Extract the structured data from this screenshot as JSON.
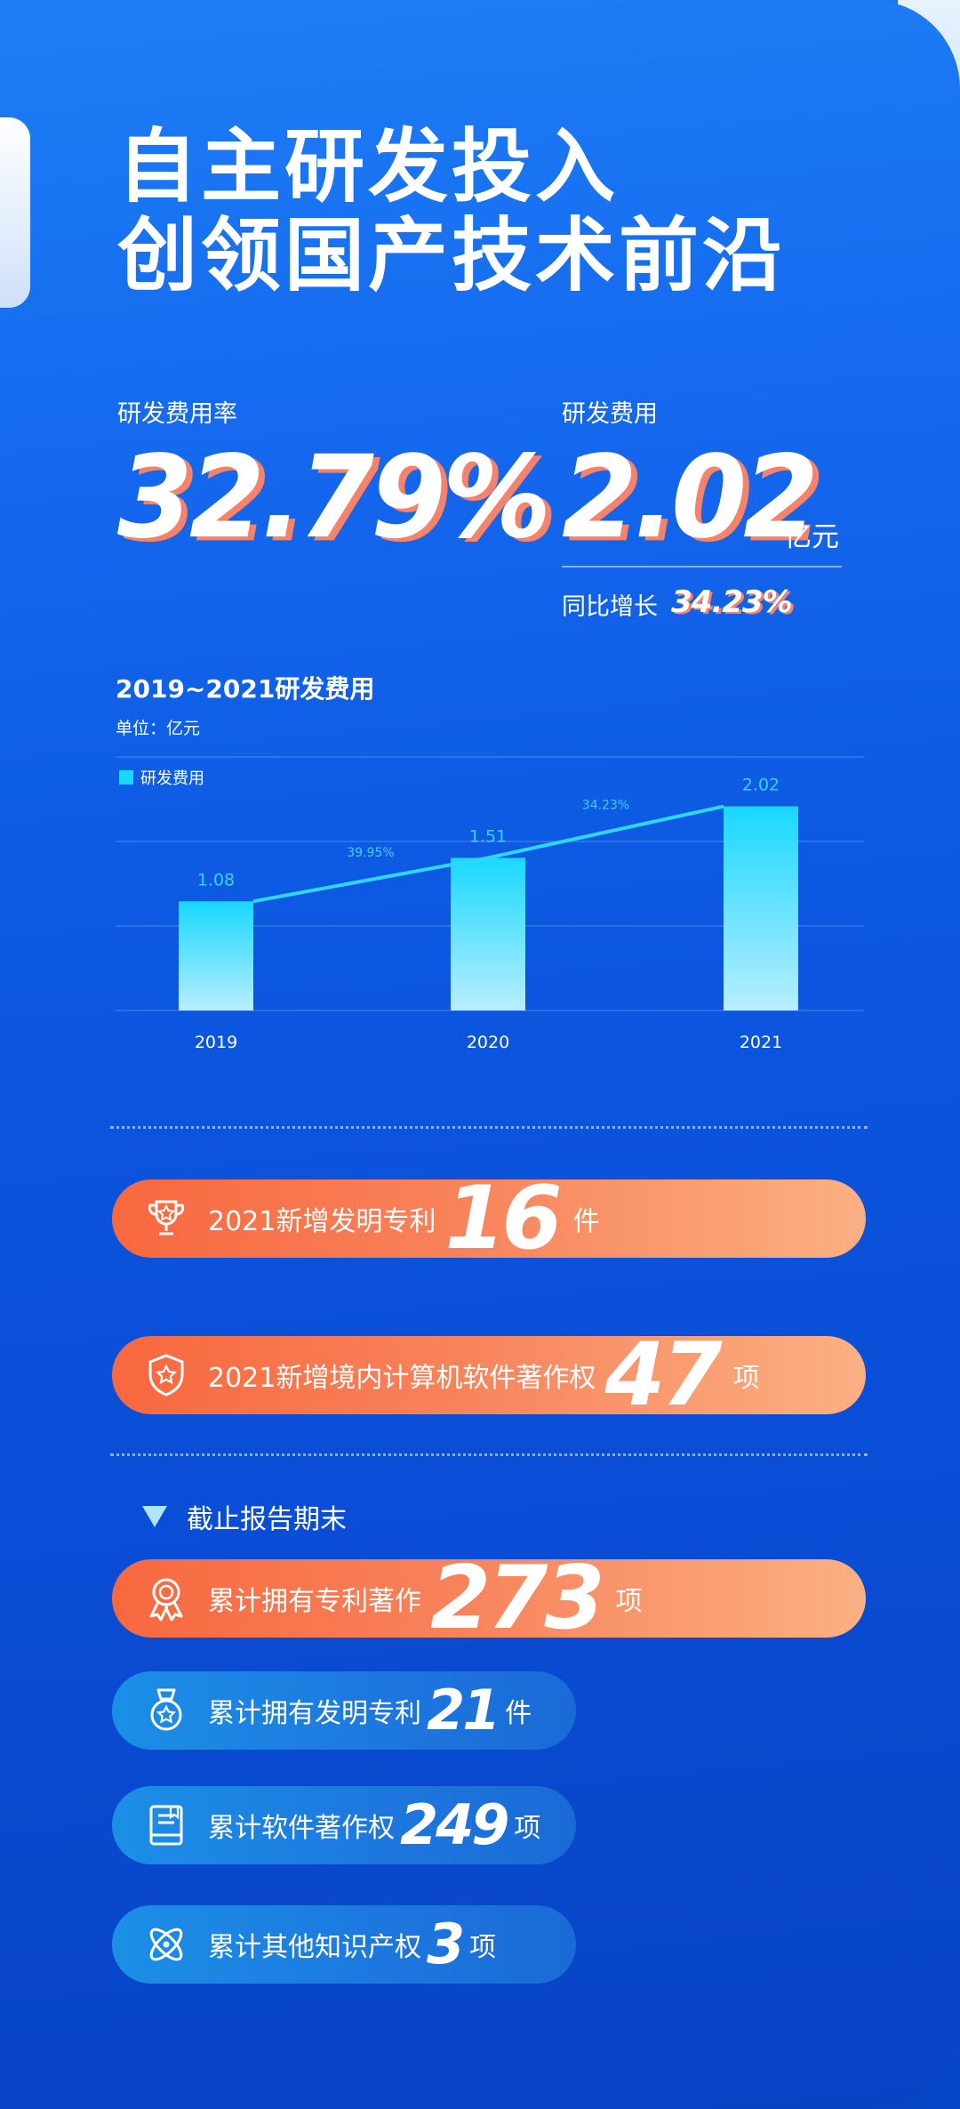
{
  "title": {
    "line1": "自主研发投入",
    "line2": "创领国产技术前沿"
  },
  "stats": {
    "rate": {
      "label": "研发费用率",
      "value": "32.79%"
    },
    "expense": {
      "label": "研发费用",
      "value": "2.02",
      "unit": "亿元",
      "yoy_label": "同比增长",
      "yoy_value": "34.23%"
    }
  },
  "chart_data": {
    "type": "bar",
    "title": "2019~2021研发费用",
    "unit_note": "单位：亿元",
    "categories": [
      "2019",
      "2020",
      "2021"
    ],
    "series": [
      {
        "name": "研发费用",
        "values": [
          1.08,
          1.51,
          2.02
        ]
      }
    ],
    "value_labels": [
      "1.08",
      "1.51",
      "2.02"
    ],
    "growth_line": {
      "labels": [
        "39.95%",
        "34.23%"
      ]
    },
    "ylim": [
      0,
      2.5
    ],
    "grid": true,
    "legend_position": "top-left",
    "colors": {
      "bar_top": "#19d8ff",
      "bar_bottom": "#b8eeff",
      "line": "#2fd7ff"
    }
  },
  "new_items": [
    {
      "label": "2021新增发明专利",
      "value": "16",
      "unit": "件",
      "icon": "trophy-icon"
    },
    {
      "label": "2021新增境内计算机软件著作权",
      "value": "47",
      "unit": "项",
      "icon": "shield-star-icon"
    }
  ],
  "period_label": "截止报告期末",
  "cumulative": [
    {
      "label": "累计拥有专利著作",
      "value": "273",
      "unit": "项",
      "icon": "award-medal-icon"
    },
    {
      "label": "累计拥有发明专利",
      "value": "21",
      "unit": "件",
      "icon": "medal-star-icon"
    },
    {
      "label": "累计软件著作权",
      "value": "249",
      "unit": "项",
      "icon": "book-icon"
    },
    {
      "label": "累计其他知识产权",
      "value": "3",
      "unit": "项",
      "icon": "atom-icon"
    }
  ],
  "colors": {
    "background": "#0c57e0",
    "accent_orange": "#f8683f",
    "number_shadow": "#f5826a"
  }
}
